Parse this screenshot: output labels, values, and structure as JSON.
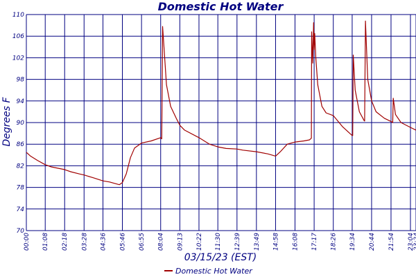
{
  "chart_data": {
    "type": "line",
    "title": "Domestic Hot Water",
    "xlabel": "03/15/23 (EST)",
    "ylabel": "Degrees F",
    "ylim": [
      70,
      110
    ],
    "yticks": [
      70,
      74,
      78,
      82,
      86,
      90,
      94,
      98,
      102,
      106,
      110
    ],
    "xticks": [
      "00:00",
      "01:08",
      "02:18",
      "03:28",
      "04:36",
      "05:46",
      "06:55",
      "08:04",
      "09:13",
      "10:22",
      "11:30",
      "12:39",
      "13:49",
      "14:58",
      "16:08",
      "17:17",
      "18:26",
      "19:34",
      "20:44",
      "21:54",
      "23:04",
      "23:24"
    ],
    "grid": true,
    "legend_position": "bottom",
    "colors": {
      "series": "#a00000",
      "grid": "#000080",
      "text": "#000080"
    },
    "series": [
      {
        "name": "Domestic Hot Water",
        "x": [
          "00:00",
          "00:15",
          "00:40",
          "01:08",
          "01:30",
          "02:18",
          "02:40",
          "03:10",
          "03:28",
          "04:00",
          "04:36",
          "05:00",
          "05:20",
          "05:35",
          "05:46",
          "06:00",
          "06:15",
          "06:30",
          "06:55",
          "07:30",
          "08:04",
          "08:08",
          "08:11",
          "08:16",
          "08:25",
          "08:40",
          "09:00",
          "09:13",
          "09:30",
          "10:22",
          "11:00",
          "11:30",
          "12:00",
          "12:39",
          "13:00",
          "13:49",
          "14:30",
          "14:58",
          "15:15",
          "15:40",
          "16:08",
          "16:40",
          "17:00",
          "17:07",
          "17:08",
          "17:12",
          "17:15",
          "17:17",
          "17:19",
          "17:23",
          "17:30",
          "17:45",
          "18:00",
          "18:26",
          "19:00",
          "19:34",
          "19:36",
          "19:38",
          "19:45",
          "20:00",
          "20:18",
          "20:19",
          "20:22",
          "20:30",
          "20:44",
          "21:00",
          "21:30",
          "21:54",
          "22:00",
          "22:02",
          "22:10",
          "22:30",
          "23:04",
          "23:24"
        ],
        "values": [
          84.5,
          83.8,
          83.0,
          82.2,
          81.8,
          81.3,
          80.9,
          80.5,
          80.3,
          79.8,
          79.2,
          79.0,
          78.7,
          78.5,
          78.9,
          80.5,
          83.5,
          85.3,
          86.2,
          86.6,
          87.2,
          87.0,
          107.8,
          104.0,
          97.0,
          93.0,
          90.8,
          89.5,
          88.6,
          87.2,
          86.0,
          85.5,
          85.2,
          85.1,
          84.9,
          84.6,
          84.2,
          83.8,
          84.6,
          86.0,
          86.4,
          86.6,
          86.8,
          87.1,
          106.8,
          101.0,
          108.5,
          103.5,
          106.5,
          102.0,
          97.0,
          93.0,
          91.8,
          91.3,
          89.2,
          87.6,
          87.6,
          102.5,
          96.0,
          92.0,
          90.3,
          90.3,
          108.8,
          98.0,
          94.0,
          92.0,
          90.8,
          90.2,
          90.0,
          94.5,
          91.5,
          90.0,
          89.1,
          88.6
        ]
      }
    ]
  }
}
